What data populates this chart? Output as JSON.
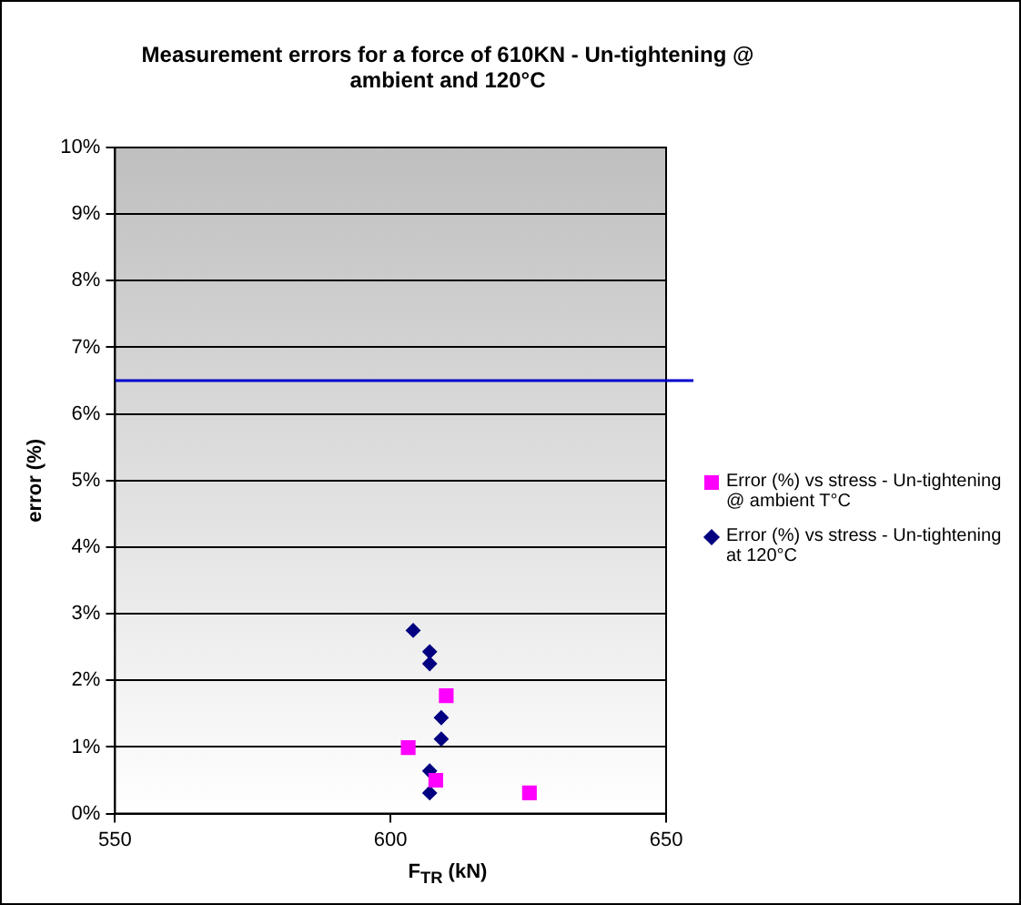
{
  "chart_data": {
    "type": "scatter",
    "title": "Measurement errors for a force of 610KN - Un-tightening @ ambient and 120°C",
    "xlabel": "F$_{TR}$ (kN)",
    "ylabel": "error (%)",
    "xlim": [
      550,
      650
    ],
    "xticks": [
      550,
      600,
      650
    ],
    "ylim": [
      0,
      10
    ],
    "yticks": [
      {
        "value": 0,
        "label": "0%"
      },
      {
        "value": 1,
        "label": "1%"
      },
      {
        "value": 2,
        "label": "2%"
      },
      {
        "value": 3,
        "label": "3%"
      },
      {
        "value": 4,
        "label": "4%"
      },
      {
        "value": 5,
        "label": "5%"
      },
      {
        "value": 6,
        "label": "6%"
      },
      {
        "value": 7,
        "label": "7%"
      },
      {
        "value": 8,
        "label": "8%"
      },
      {
        "value": 9,
        "label": "9%"
      },
      {
        "value": 10,
        "label": "10%"
      }
    ],
    "grid": "y",
    "legend": "right",
    "series": [
      {
        "name": "Error (%) vs stress - Un-tightening @ ambient T°C",
        "color": "#ff00ff",
        "marker": "square",
        "x": [
          610.1,
          603.2,
          608.2,
          625.2
        ],
        "values": [
          1.77,
          0.99,
          0.5,
          0.31
        ]
      },
      {
        "name": "Error (%) vs stress - Un-tightening at 120°C",
        "color": "#000080",
        "marker": "diamond",
        "x": [
          604.1,
          607.1,
          607.1,
          609.2,
          609.2,
          607.1,
          607.1
        ],
        "values": [
          2.75,
          2.43,
          2.25,
          1.44,
          1.12,
          0.64,
          0.31
        ]
      }
    ],
    "ref_lines": [
      {
        "axis": "y",
        "value": 6.5,
        "color": "#0000cc"
      }
    ]
  }
}
